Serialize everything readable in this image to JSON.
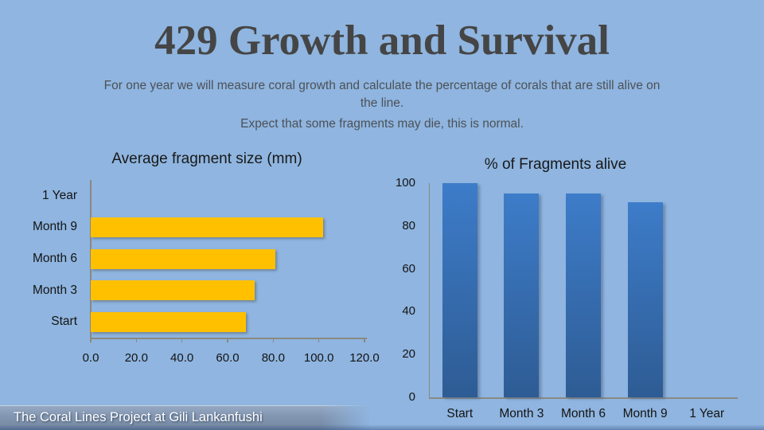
{
  "slide": {
    "title": "429 Growth and Survival",
    "subtitle_line1": "For one year we will measure coral growth and calculate the percentage of corals that are still alive on the line.",
    "subtitle_line2": "Expect that some fragments may die, this is normal.",
    "footer": "The Coral Lines Project at Gili Lankanfushi"
  },
  "colors": {
    "background": "#8FB5E0",
    "title_text": "#454545",
    "subtitle_text": "#4D5156",
    "chart_text": "#141414",
    "axis_line": "#8A8A80",
    "orange_bar": "#FFC000",
    "blue_bar_top": "#3D7CC9",
    "blue_bar_bottom": "#2E5C94",
    "footer_bar": "#8296B2",
    "footer_text": "#FFFFFF"
  },
  "chart_data": [
    {
      "type": "bar",
      "orientation": "horizontal",
      "title": "Average fragment size (mm)",
      "categories": [
        "1 Year",
        "Month 9",
        "Month 6",
        "Month 3",
        "Start"
      ],
      "values": [
        0,
        102,
        81,
        72,
        68
      ],
      "xlabel": "",
      "ylabel": "",
      "xlim": [
        0,
        120
      ],
      "x_ticks": [
        "0.0",
        "20.0",
        "40.0",
        "60.0",
        "80.0",
        "100.0",
        "120.0"
      ],
      "bar_color": "#FFC000",
      "grid": false,
      "legend": "none"
    },
    {
      "type": "bar",
      "orientation": "vertical",
      "title": "% of Fragments alive",
      "categories": [
        "Start",
        "Month 3",
        "Month 6",
        "Month 9",
        "1 Year"
      ],
      "values": [
        100,
        95,
        95,
        91,
        0
      ],
      "xlabel": "",
      "ylabel": "",
      "ylim": [
        0,
        100
      ],
      "y_ticks": [
        "0",
        "20",
        "40",
        "60",
        "80",
        "100"
      ],
      "bar_color_top": "#3D7CC9",
      "bar_color_bottom": "#2E5C94",
      "grid": false,
      "legend": "none"
    }
  ]
}
